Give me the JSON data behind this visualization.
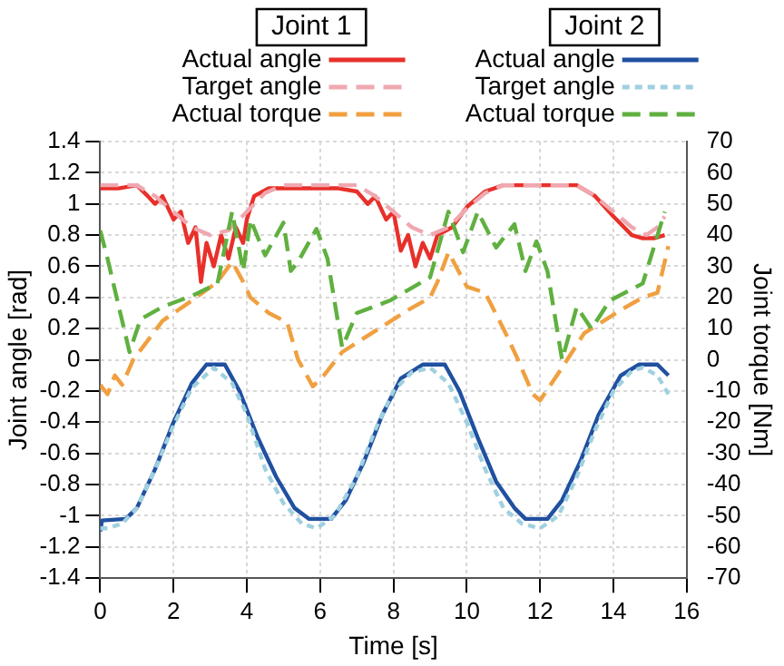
{
  "chart_data": {
    "type": "line",
    "xlabel": "Time [s]",
    "ylabel": "Joint angle [rad]",
    "y2label": "Joint torque [Nm]",
    "annotations": [
      "Joint 1",
      "Joint 2"
    ],
    "xlim": [
      0,
      16
    ],
    "xticks": [
      0,
      2,
      4,
      6,
      8,
      10,
      12,
      14,
      16
    ],
    "ylim": [
      -1.4,
      1.4
    ],
    "yticks": [
      -1.4,
      -1.2,
      -1,
      -0.8,
      -0.6,
      -0.4,
      -0.2,
      0,
      0.2,
      0.4,
      0.6,
      0.8,
      1,
      1.2,
      1.4
    ],
    "y2lim": [
      -70,
      70
    ],
    "y2ticks": [
      -70,
      -60,
      -50,
      -40,
      -30,
      -20,
      -10,
      0,
      10,
      20,
      30,
      40,
      50,
      60,
      70
    ],
    "grid": true,
    "legend": "top",
    "marker": "none",
    "series": [
      {
        "name": "Actual angle",
        "color": "#e8302a",
        "line_style": "solid",
        "x": [
          0,
          0.5,
          1,
          1.3,
          1.5,
          1.7,
          2,
          2.2,
          2.4,
          2.6,
          2.75,
          2.9,
          3.1,
          3.3,
          3.5,
          3.7,
          3.9,
          4,
          4.2,
          4.6,
          5.5,
          6.5,
          7,
          7.3,
          7.5,
          7.8,
          8,
          8.2,
          8.4,
          8.6,
          8.8,
          9,
          9.2,
          9.6,
          10,
          10.5,
          11,
          12,
          13,
          13.5,
          14,
          14.5,
          14.8,
          15.1,
          15.4
        ],
        "values": [
          1.1,
          1.1,
          1.12,
          1.05,
          1,
          1.05,
          0.9,
          0.95,
          0.75,
          0.85,
          0.5,
          0.75,
          0.6,
          0.8,
          0.65,
          0.85,
          0.75,
          0.9,
          1.05,
          1.1,
          1.1,
          1.1,
          1.08,
          1,
          1.05,
          0.9,
          0.95,
          0.7,
          0.8,
          0.6,
          0.75,
          0.65,
          0.8,
          0.85,
          0.98,
          1.08,
          1.12,
          1.12,
          1.12,
          1.05,
          0.92,
          0.8,
          0.78,
          0.78,
          0.8
        ]
      },
      {
        "name": "Target angle",
        "color": "#f0a8b0",
        "line_style": "dashed",
        "x": [
          0,
          1,
          1.5,
          2,
          2.5,
          3,
          3.5,
          4,
          4.5,
          5,
          7,
          7.5,
          8,
          8.5,
          9,
          9.5,
          10,
          10.5,
          11,
          13,
          13.5,
          14,
          14.5,
          14.9,
          15.2,
          15.4
        ],
        "values": [
          1.12,
          1.12,
          1.05,
          0.95,
          0.85,
          0.8,
          0.83,
          0.95,
          1.07,
          1.12,
          1.12,
          1.05,
          0.95,
          0.85,
          0.8,
          0.85,
          0.97,
          1.07,
          1.12,
          1.12,
          1.05,
          0.95,
          0.85,
          0.8,
          0.85,
          0.92
        ]
      },
      {
        "name": "Actual torque",
        "color": "#f0a040",
        "line_style": "dashed",
        "axis": "y2",
        "x": [
          0,
          0.2,
          0.4,
          0.6,
          0.9,
          1.7,
          2.5,
          3.2,
          3.6,
          3.9,
          4.1,
          4.6,
          5.1,
          5.4,
          5.8,
          6.1,
          6.6,
          7.4,
          8.4,
          9,
          9.2,
          9.5,
          10,
          10.5,
          11,
          11.4,
          11.8,
          12,
          12.6,
          13.2,
          14.2,
          14.8,
          15.2,
          15.5
        ],
        "values": [
          -8,
          -11,
          -5,
          -8,
          0,
          12.5,
          19,
          25,
          31.5,
          25,
          20,
          15,
          12,
          0,
          -8.5,
          -5,
          2.5,
          8.5,
          16,
          20,
          25,
          34.5,
          23.5,
          21.5,
          10,
          0,
          -11,
          -13,
          -2.5,
          8.5,
          16,
          20,
          21.5,
          36.5
        ]
      },
      {
        "name": "Actual angle",
        "color": "#2050a0",
        "line_style": "solid",
        "x": [
          0,
          0.05,
          0.7,
          1,
          1.5,
          2,
          2.5,
          2.9,
          3.4,
          3.8,
          4.3,
          4.8,
          5.3,
          5.7,
          6.3,
          6.7,
          7.2,
          7.7,
          8.2,
          8.8,
          9.4,
          9.8,
          10.3,
          10.8,
          11.3,
          11.6,
          12.2,
          12.6,
          13.1,
          13.6,
          14.2,
          14.7,
          15.2,
          15.5
        ],
        "values": [
          -1.1,
          -1.03,
          -1.02,
          -0.95,
          -0.7,
          -0.4,
          -0.15,
          -0.03,
          -0.03,
          -0.2,
          -0.5,
          -0.75,
          -0.95,
          -1.02,
          -1.02,
          -0.9,
          -0.65,
          -0.35,
          -0.12,
          -0.03,
          -0.03,
          -0.2,
          -0.5,
          -0.78,
          -0.95,
          -1.02,
          -1.02,
          -0.9,
          -0.65,
          -0.35,
          -0.1,
          -0.03,
          -0.03,
          -0.1
        ]
      },
      {
        "name": "Target angle",
        "color": "#a0d0e0",
        "line_style": "dotted",
        "x": [
          0,
          0.2,
          0.6,
          1,
          1.5,
          2,
          2.5,
          3.1,
          3.6,
          4,
          4.5,
          5,
          5.5,
          5.9,
          6.4,
          7,
          7.5,
          8,
          8.5,
          9,
          9.5,
          10,
          10.5,
          11,
          11.5,
          12,
          12.5,
          13,
          13.5,
          14,
          14.5,
          14.8,
          15.2,
          15.5
        ],
        "values": [
          -1.08,
          -1.08,
          -1.05,
          -0.95,
          -0.7,
          -0.42,
          -0.18,
          -0.05,
          -0.15,
          -0.35,
          -0.7,
          -0.92,
          -1.05,
          -1.08,
          -1,
          -0.75,
          -0.45,
          -0.2,
          -0.08,
          -0.05,
          -0.15,
          -0.4,
          -0.7,
          -0.95,
          -1.05,
          -1.08,
          -1,
          -0.75,
          -0.45,
          -0.2,
          -0.07,
          -0.05,
          -0.1,
          -0.22
        ]
      },
      {
        "name": "Actual torque",
        "color": "#60b040",
        "line_style": "dashed",
        "axis": "y2",
        "x": [
          0,
          0.2,
          0.8,
          1.1,
          1.7,
          2.5,
          3.2,
          3.6,
          3.9,
          4.1,
          4.5,
          5,
          5.2,
          5.4,
          5.9,
          6.2,
          6.6,
          7,
          7.9,
          9,
          9.5,
          9.9,
          10.3,
          10.8,
          11.3,
          11.6,
          11.9,
          12.2,
          12.6,
          13,
          13.4,
          13.9,
          14.8,
          15.4
        ],
        "values": [
          41.5,
          32.5,
          2.5,
          13,
          17,
          20.5,
          24.5,
          47.5,
          28.5,
          45,
          33.5,
          44,
          28.5,
          31.5,
          42,
          32.5,
          4,
          15,
          19,
          26.5,
          47.5,
          34.5,
          47.5,
          36,
          43.5,
          28.5,
          38,
          28.5,
          0,
          17,
          10,
          19,
          24.5,
          47.5
        ]
      }
    ]
  }
}
